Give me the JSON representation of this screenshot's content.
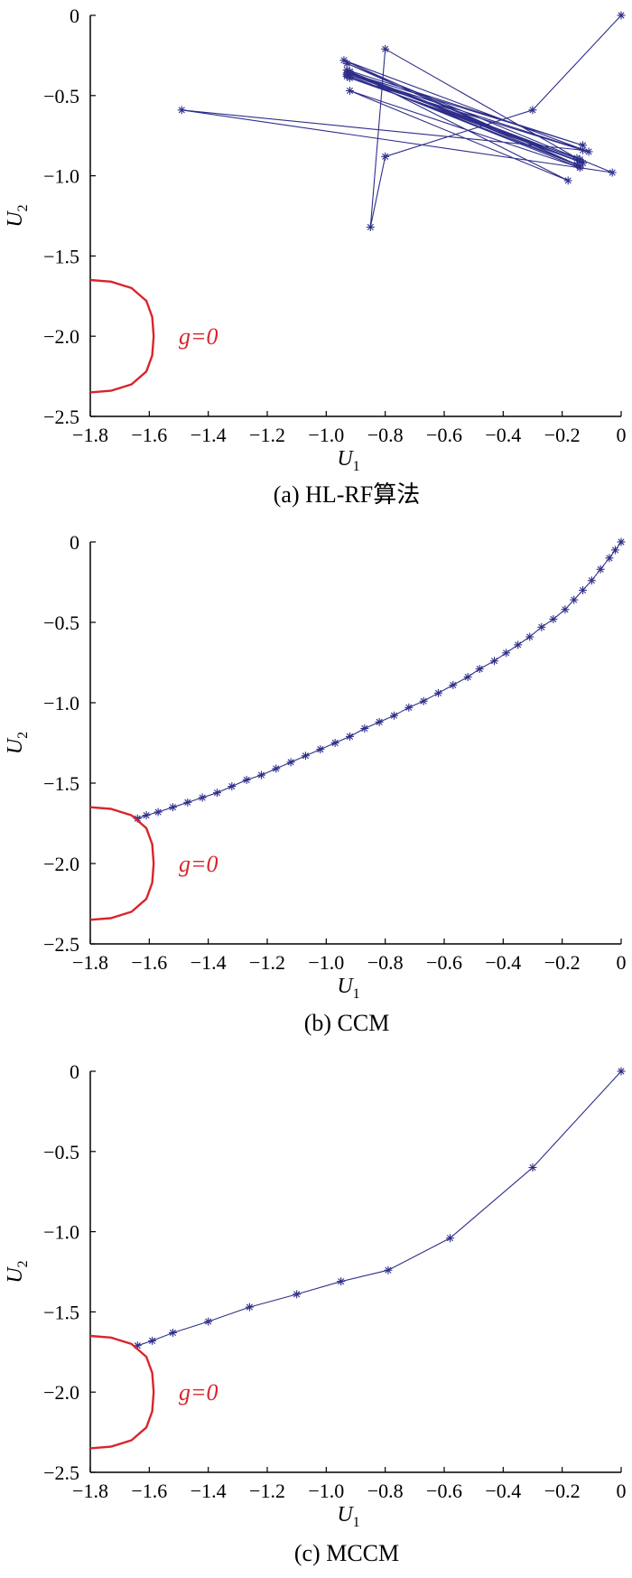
{
  "colors": {
    "path": "#2e2e8a",
    "limit_state": "#d9252b",
    "axis": "#000000"
  },
  "chart_data": [
    {
      "type": "line",
      "caption": "(a)  HL-RF算法",
      "xlabel": "U",
      "xlabel_sub": "1",
      "ylabel": "U",
      "ylabel_sub": "2",
      "xlim": [
        -1.8,
        0
      ],
      "ylim": [
        -2.5,
        0
      ],
      "xticks": [
        "−1.8",
        "−1.6",
        "−1.4",
        "−1.2",
        "−1.0",
        "−0.8",
        "−0.6",
        "−0.4",
        "−0.2",
        "0"
      ],
      "yticks": [
        "0",
        "−0.5",
        "−1.0",
        "−1.5",
        "−2.0",
        "−2.5"
      ],
      "annotation": "g=0",
      "series": [
        {
          "marker": "asterisk",
          "x": [
            0,
            -0.3,
            -0.8,
            -0.85,
            -0.8,
            -0.15,
            -0.92,
            -0.13,
            -1.49,
            -0.03,
            -0.93,
            -0.15,
            -0.94,
            -0.11,
            -0.92,
            -0.14,
            -0.93,
            -0.14,
            -0.93,
            -0.13,
            -0.92,
            -0.14,
            -0.93,
            -0.14,
            -0.92,
            -0.18,
            -0.93,
            -0.13,
            -0.92,
            -0.14
          ],
          "y": [
            0,
            -0.59,
            -0.88,
            -1.32,
            -0.21,
            -0.89,
            -0.39,
            -0.84,
            -0.59,
            -0.98,
            -0.3,
            -0.93,
            -0.28,
            -0.85,
            -0.37,
            -0.9,
            -0.36,
            -0.91,
            -0.38,
            -0.92,
            -0.35,
            -0.94,
            -0.37,
            -0.95,
            -0.47,
            -1.03,
            -0.34,
            -0.81,
            -0.36,
            -0.9
          ]
        },
        {
          "marker": "none",
          "name": "g=0",
          "x": [
            -1.8,
            -1.73,
            -1.66,
            -1.61,
            -1.59,
            -1.585,
            -1.59,
            -1.61,
            -1.66,
            -1.73,
            -1.8
          ],
          "y": [
            -1.65,
            -1.66,
            -1.7,
            -1.78,
            -1.88,
            -2.0,
            -2.12,
            -2.22,
            -2.3,
            -2.34,
            -2.35
          ]
        }
      ]
    },
    {
      "type": "line",
      "caption": "(b)  CCM",
      "xlabel": "U",
      "xlabel_sub": "1",
      "ylabel": "U",
      "ylabel_sub": "2",
      "xlim": [
        -1.8,
        0
      ],
      "ylim": [
        -2.5,
        0
      ],
      "xticks": [
        "−1.8",
        "−1.6",
        "−1.4",
        "−1.2",
        "−1.0",
        "−0.8",
        "−0.6",
        "−0.4",
        "−0.2",
        "0"
      ],
      "yticks": [
        "0",
        "−0.5",
        "−1.0",
        "−1.5",
        "−2.0",
        "−2.5"
      ],
      "annotation": "g=0",
      "series": [
        {
          "marker": "asterisk",
          "x": [
            0,
            -0.02,
            -0.04,
            -0.07,
            -0.1,
            -0.13,
            -0.16,
            -0.19,
            -0.23,
            -0.27,
            -0.31,
            -0.35,
            -0.39,
            -0.43,
            -0.48,
            -0.52,
            -0.57,
            -0.62,
            -0.67,
            -0.72,
            -0.77,
            -0.82,
            -0.87,
            -0.92,
            -0.97,
            -1.02,
            -1.07,
            -1.12,
            -1.17,
            -1.22,
            -1.27,
            -1.32,
            -1.37,
            -1.42,
            -1.47,
            -1.52,
            -1.57,
            -1.61,
            -1.64
          ],
          "y": [
            0,
            -0.05,
            -0.1,
            -0.17,
            -0.24,
            -0.3,
            -0.36,
            -0.42,
            -0.48,
            -0.53,
            -0.59,
            -0.64,
            -0.69,
            -0.74,
            -0.79,
            -0.84,
            -0.89,
            -0.94,
            -0.99,
            -1.03,
            -1.08,
            -1.12,
            -1.16,
            -1.21,
            -1.25,
            -1.29,
            -1.33,
            -1.37,
            -1.41,
            -1.45,
            -1.48,
            -1.52,
            -1.56,
            -1.59,
            -1.62,
            -1.65,
            -1.68,
            -1.7,
            -1.72
          ]
        },
        {
          "marker": "none",
          "name": "g=0",
          "x": [
            -1.8,
            -1.73,
            -1.66,
            -1.61,
            -1.59,
            -1.585,
            -1.59,
            -1.61,
            -1.66,
            -1.73,
            -1.8
          ],
          "y": [
            -1.65,
            -1.66,
            -1.7,
            -1.78,
            -1.88,
            -2.0,
            -2.12,
            -2.22,
            -2.3,
            -2.34,
            -2.35
          ]
        }
      ]
    },
    {
      "type": "line",
      "caption": "(c)  MCCM",
      "xlabel": "U",
      "xlabel_sub": "1",
      "ylabel": "U",
      "ylabel_sub": "2",
      "xlim": [
        -1.8,
        0
      ],
      "ylim": [
        -2.5,
        0
      ],
      "xticks": [
        "−1.8",
        "−1.6",
        "−1.4",
        "−1.2",
        "−1.0",
        "−0.8",
        "−0.6",
        "−0.4",
        "−0.2",
        "0"
      ],
      "yticks": [
        "0",
        "−0.5",
        "−1.0",
        "−1.5",
        "−2.0",
        "−2.5"
      ],
      "annotation": "g=0",
      "series": [
        {
          "marker": "asterisk",
          "x": [
            0,
            -0.3,
            -0.58,
            -0.79,
            -0.95,
            -1.1,
            -1.26,
            -1.4,
            -1.52,
            -1.59,
            -1.64
          ],
          "y": [
            0,
            -0.6,
            -1.04,
            -1.24,
            -1.31,
            -1.39,
            -1.47,
            -1.56,
            -1.63,
            -1.68,
            -1.71
          ]
        },
        {
          "marker": "none",
          "name": "g=0",
          "x": [
            -1.8,
            -1.73,
            -1.66,
            -1.61,
            -1.59,
            -1.585,
            -1.59,
            -1.61,
            -1.66,
            -1.73,
            -1.8
          ],
          "y": [
            -1.65,
            -1.66,
            -1.7,
            -1.78,
            -1.88,
            -2.0,
            -2.12,
            -2.22,
            -2.3,
            -2.34,
            -2.35
          ]
        }
      ]
    }
  ]
}
